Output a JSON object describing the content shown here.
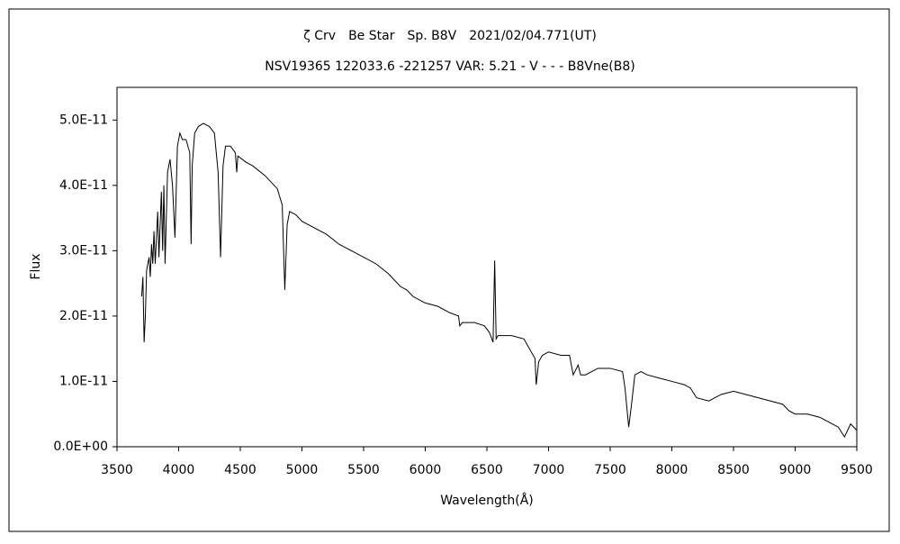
{
  "chart_data": {
    "type": "line",
    "title": "ζ Crv　Be Star　Sp. B8V　2021/02/04.771(UT)",
    "subtitle": "NSV19365 122033.6 -221257 VAR: 5.21 - V - - - B8Vne(B8)",
    "x_label": "Wavelength(Å)",
    "y_label": "Flux",
    "xlim": [
      3500,
      9500
    ],
    "xticks": [
      3500,
      4000,
      4500,
      5000,
      5500,
      6000,
      6500,
      7000,
      7500,
      8000,
      8500,
      9000,
      9500
    ],
    "ylim": [
      0,
      5.5e-11
    ],
    "yticks": [
      {
        "value": 0,
        "label": "0.0E+00"
      },
      {
        "value": 1e-11,
        "label": "1.0E-11"
      },
      {
        "value": 2e-11,
        "label": "2.0E-11"
      },
      {
        "value": 3e-11,
        "label": "3.0E-11"
      },
      {
        "value": 4e-11,
        "label": "4.0E-11"
      },
      {
        "value": 5e-11,
        "label": "5.0E-11"
      }
    ],
    "color": "#000000",
    "x": [
      3700,
      3710,
      3720,
      3730,
      3740,
      3760,
      3770,
      3780,
      3790,
      3800,
      3810,
      3830,
      3840,
      3860,
      3870,
      3880,
      3890,
      3910,
      3930,
      3950,
      3970,
      3990,
      4010,
      4030,
      4060,
      4090,
      4101,
      4110,
      4130,
      4160,
      4200,
      4250,
      4290,
      4320,
      4340,
      4360,
      4380,
      4420,
      4460,
      4471,
      4480,
      4550,
      4600,
      4700,
      4800,
      4840,
      4861,
      4880,
      4900,
      4950,
      5000,
      5100,
      5200,
      5300,
      5400,
      5500,
      5600,
      5700,
      5750,
      5800,
      5850,
      5900,
      6000,
      6100,
      6200,
      6270,
      6280,
      6300,
      6400,
      6480,
      6520,
      6550,
      6563,
      6575,
      6590,
      6700,
      6800,
      6860,
      6890,
      6900,
      6920,
      6950,
      7000,
      7100,
      7170,
      7200,
      7240,
      7260,
      7300,
      7400,
      7500,
      7600,
      7620,
      7650,
      7670,
      7700,
      7750,
      7800,
      7900,
      8000,
      8100,
      8150,
      8200,
      8300,
      8400,
      8500,
      8600,
      8700,
      8800,
      8900,
      8950,
      9000,
      9100,
      9200,
      9300,
      9350,
      9400,
      9450,
      9500
    ],
    "values": [
      2.3e-11,
      2.6e-11,
      1.6e-11,
      2e-11,
      2.7e-11,
      2.9e-11,
      2.6e-11,
      3.1e-11,
      2.8e-11,
      3.3e-11,
      2.8e-11,
      3.6e-11,
      2.9e-11,
      3.9e-11,
      3e-11,
      4e-11,
      2.8e-11,
      4.2e-11,
      4.4e-11,
      4e-11,
      3.2e-11,
      4.6e-11,
      4.8e-11,
      4.7e-11,
      4.7e-11,
      4.5e-11,
      3.1e-11,
      4.3e-11,
      4.8e-11,
      4.9e-11,
      4.95e-11,
      4.9e-11,
      4.8e-11,
      4.2e-11,
      2.9e-11,
      4.3e-11,
      4.6e-11,
      4.6e-11,
      4.5e-11,
      4.2e-11,
      4.45e-11,
      4.35e-11,
      4.3e-11,
      4.15e-11,
      3.95e-11,
      3.7e-11,
      2.4e-11,
      3.4e-11,
      3.6e-11,
      3.55e-11,
      3.45e-11,
      3.35e-11,
      3.25e-11,
      3.1e-11,
      3e-11,
      2.9e-11,
      2.8e-11,
      2.65e-11,
      2.55e-11,
      2.45e-11,
      2.4e-11,
      2.3e-11,
      2.2e-11,
      2.15e-11,
      2.05e-11,
      2e-11,
      1.85e-11,
      1.9e-11,
      1.9e-11,
      1.85e-11,
      1.75e-11,
      1.6e-11,
      2.85e-11,
      1.65e-11,
      1.7e-11,
      1.7e-11,
      1.65e-11,
      1.45e-11,
      1.35e-11,
      9.5e-12,
      1.3e-11,
      1.4e-11,
      1.45e-11,
      1.4e-11,
      1.4e-11,
      1.1e-11,
      1.25e-11,
      1.1e-11,
      1.1e-11,
      1.2e-11,
      1.2e-11,
      1.15e-11,
      9e-12,
      3e-12,
      6e-12,
      1.1e-11,
      1.15e-11,
      1.1e-11,
      1.05e-11,
      1e-11,
      9.5e-12,
      9e-12,
      7.5e-12,
      7e-12,
      8e-12,
      8.5e-12,
      8e-12,
      7.5e-12,
      7e-12,
      6.5e-12,
      5.5e-12,
      5e-12,
      5e-12,
      4.5e-12,
      3.5e-12,
      3e-12,
      1.5e-12,
      3.5e-12,
      2.5e-12
    ]
  }
}
